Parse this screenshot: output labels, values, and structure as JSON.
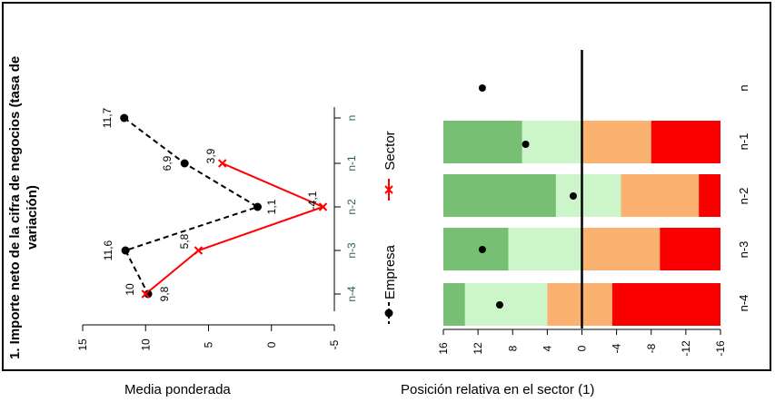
{
  "title": "1. Importe neto de la cifra de negocios (tasa de variación)",
  "caption_left": "Media ponderada",
  "caption_right": "Posición relativa en el sector (1)",
  "colors": {
    "empresa": "#000000",
    "sector": "#ff0000",
    "dark_green": "#77bf72",
    "light_green": "#ccf5c9",
    "orange": "#fbb16f",
    "red": "#fb0000"
  },
  "chart_data": [
    {
      "type": "line",
      "categories": [
        "n",
        "n-1",
        "n-2",
        "n-3",
        "n-4"
      ],
      "ylim": [
        -5,
        15
      ],
      "yticks": [
        "15",
        "10",
        "5",
        "0",
        "-5"
      ],
      "series": [
        {
          "name": "Empresa",
          "style": "dashed",
          "marker": "dot",
          "values": [
            11.7,
            6.9,
            1.1,
            11.6,
            9.8
          ],
          "labels": [
            "11,7",
            "6,9",
            "1,1",
            "11,6",
            "9,8"
          ]
        },
        {
          "name": "Sector",
          "style": "solid",
          "marker": "x",
          "values": [
            null,
            3.9,
            -4.1,
            5.8,
            10
          ],
          "labels": [
            "",
            "3,9",
            "-4,1",
            "5,8",
            "10"
          ]
        }
      ],
      "legend": [
        "Empresa",
        "Sector"
      ]
    },
    {
      "type": "bar",
      "categories": [
        "n",
        "n-1",
        "n-2",
        "n-3",
        "n-4"
      ],
      "xlim": [
        16,
        -16
      ],
      "xticks": [
        "16",
        "12",
        "8",
        "4",
        "0",
        "-4",
        "-8",
        "-12",
        "-16"
      ],
      "stacked_segments": [
        "dark_green",
        "light_green",
        "orange",
        "red"
      ],
      "segments": [
        null,
        [
          [
            16,
            6.9
          ],
          [
            6.9,
            0
          ],
          [
            0,
            -8
          ],
          [
            -8,
            -16
          ]
        ],
        [
          [
            16,
            3
          ],
          [
            3,
            -4.5
          ],
          [
            -4.5,
            -13.5
          ],
          [
            -13.5,
            -16
          ]
        ],
        [
          [
            16,
            8.5
          ],
          [
            8.5,
            0
          ],
          [
            0,
            -9
          ],
          [
            -9,
            -16
          ]
        ],
        [
          [
            16,
            13.5
          ],
          [
            13.5,
            4
          ],
          [
            4,
            -3.5
          ],
          [
            -3.5,
            -16
          ]
        ]
      ],
      "points": [
        11.5,
        6.5,
        1,
        11.5,
        9.5
      ]
    }
  ]
}
